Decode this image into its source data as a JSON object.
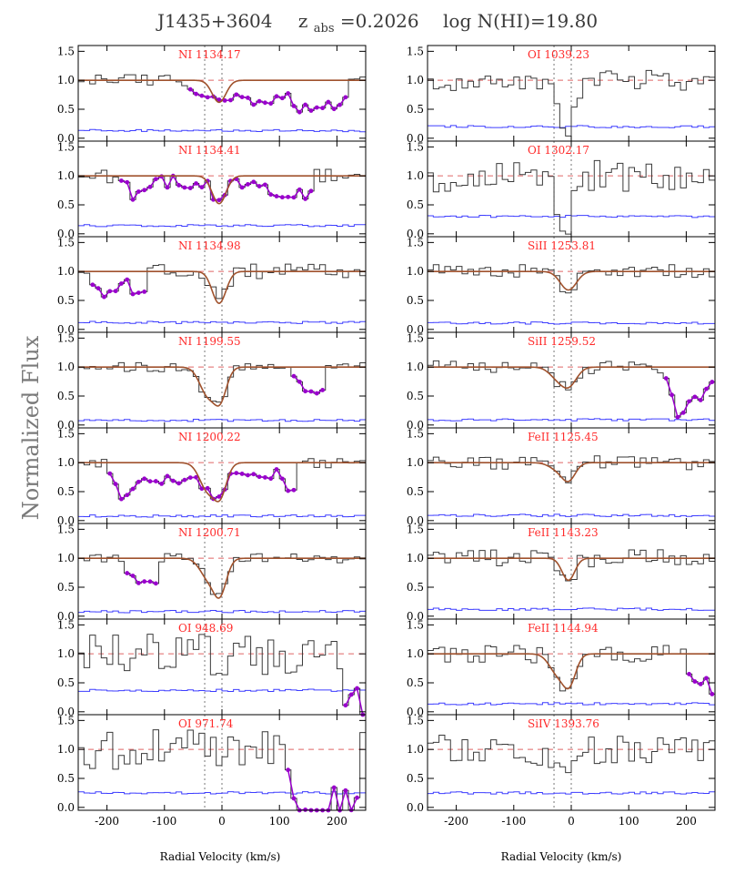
{
  "header": {
    "object": "J1435+3604",
    "z_symbol": "z",
    "z_subscript": "abs",
    "z_value": "=0.2026",
    "column_density": "log N(HI)=19.80"
  },
  "ylabel": "Normalized Flux",
  "xlabel": "Radial Velocity (km/s)",
  "colors": {
    "data": "#3a3a3a",
    "error": "#3d3dff",
    "fit": "#a0522d",
    "continuum": "#e06666",
    "label": "#ff2a2a",
    "blend": "#9900cc",
    "marker": "#777777"
  },
  "chart_data": {
    "type": "line",
    "subtype": "absorption-line velocity stack",
    "xlim": [
      -250,
      250
    ],
    "ylim": [
      -0.05,
      1.6
    ],
    "xticks": [
      -200,
      -100,
      0,
      100,
      200
    ],
    "yticks": [
      0.0,
      0.5,
      1.0,
      1.5
    ],
    "ytick_labels": [
      "0.0",
      "0.5",
      "1.0",
      "1.5"
    ],
    "vlines": [
      -30,
      0
    ],
    "grid": false,
    "legend": "none",
    "panels": [
      {
        "label": "NI 1134.17",
        "col": 0,
        "row": 0,
        "noise": 0.11,
        "error": 0.13,
        "fit": true,
        "comps": [
          {
            "v": -5,
            "d": 0.38,
            "w": 12
          }
        ],
        "blends": [
          [
            -60,
            0.72
          ],
          [
            -40,
            0.8
          ],
          [
            85,
            0.55
          ],
          [
            100,
            0.8
          ],
          [
            130,
            0.55
          ],
          [
            210,
            0.62
          ],
          [
            220,
            0.75
          ]
        ],
        "continuum": true
      },
      {
        "label": "NI 1134.41",
        "col": 0,
        "row": 1,
        "noise": 0.12,
        "error": 0.14,
        "fit": true,
        "comps": [
          {
            "v": -5,
            "d": 0.48,
            "w": 12
          }
        ],
        "blends": [
          [
            -175,
            0.85
          ],
          [
            -140,
            0.6
          ],
          [
            -120,
            0.9
          ],
          [
            70,
            0.85
          ],
          [
            120,
            0.62
          ],
          [
            160,
            0.75
          ]
        ],
        "continuum": true
      },
      {
        "label": "NI 1134.98",
        "col": 0,
        "row": 2,
        "noise": 0.13,
        "error": 0.12,
        "fit": true,
        "comps": [
          {
            "v": -5,
            "d": 0.55,
            "w": 12
          }
        ],
        "blends": [
          [
            -230,
            0.82
          ],
          [
            -200,
            0.6
          ],
          [
            -160,
            0.75
          ],
          [
            -130,
            0.55
          ]
        ],
        "continuum": true
      },
      {
        "label": "NI 1199.55",
        "col": 0,
        "row": 3,
        "noise": 0.08,
        "error": 0.08,
        "fit": true,
        "comps": [
          {
            "v": -25,
            "d": 0.45,
            "w": 14
          },
          {
            "v": -5,
            "d": 0.6,
            "w": 12
          }
        ],
        "blends": [
          [
            120,
            0.85
          ],
          [
            150,
            0.6
          ],
          [
            175,
            0.55
          ]
        ],
        "continuum": true
      },
      {
        "label": "NI 1200.22",
        "col": 0,
        "row": 4,
        "noise": 0.09,
        "error": 0.08,
        "fit": true,
        "comps": [
          {
            "v": -25,
            "d": 0.45,
            "w": 14
          },
          {
            "v": -5,
            "d": 0.6,
            "w": 12
          }
        ],
        "blends": [
          [
            -200,
            0.8
          ],
          [
            -175,
            0.45
          ],
          [
            -140,
            0.7
          ],
          [
            100,
            0.8
          ],
          [
            130,
            0.4
          ]
        ],
        "continuum": true
      },
      {
        "label": "NI 1200.71",
        "col": 0,
        "row": 5,
        "noise": 0.08,
        "error": 0.08,
        "fit": true,
        "comps": [
          {
            "v": -25,
            "d": 0.3,
            "w": 14
          },
          {
            "v": -5,
            "d": 0.65,
            "w": 12
          }
        ],
        "blends": [
          [
            -170,
            0.85
          ],
          [
            -140,
            0.6
          ],
          [
            -110,
            0.55
          ]
        ],
        "continuum": true
      },
      {
        "label": "OI 948.69",
        "col": 0,
        "row": 6,
        "noise": 0.38,
        "error": 0.37,
        "fit": false,
        "comps": [],
        "blends": [
          [
            210,
            0.45
          ],
          [
            230,
            0.35
          ],
          [
            250,
            0.1
          ]
        ],
        "continuum": true
      },
      {
        "label": "OI 971.74",
        "col": 0,
        "row": 7,
        "noise": 0.36,
        "error": 0.25,
        "fit": false,
        "comps": [],
        "blends": [
          [
            110,
            0.7
          ],
          [
            130,
            0.25
          ],
          [
            160,
            0.05
          ],
          [
            240,
            0.05
          ]
        ],
        "continuum": true
      },
      {
        "label": "OI 1039.23",
        "col": 1,
        "row": 0,
        "noise": 0.18,
        "error": 0.2,
        "fit": false,
        "comps": [
          {
            "v": -10,
            "d": 0.9,
            "w": 14
          }
        ],
        "blends": [],
        "continuum": true
      },
      {
        "label": "OI 1302.17",
        "col": 1,
        "row": 1,
        "noise": 0.3,
        "error": 0.3,
        "fit": false,
        "comps": [
          {
            "v": -10,
            "d": 0.9,
            "w": 14
          }
        ],
        "blends": [],
        "continuum": true
      },
      {
        "label": "SiII 1253.81",
        "col": 1,
        "row": 2,
        "noise": 0.12,
        "error": 0.11,
        "fit": true,
        "comps": [
          {
            "v": -5,
            "d": 0.32,
            "w": 14
          }
        ],
        "blends": [],
        "continuum": true
      },
      {
        "label": "SiII 1259.52",
        "col": 1,
        "row": 3,
        "noise": 0.12,
        "error": 0.09,
        "fit": true,
        "comps": [
          {
            "v": -25,
            "d": 0.15,
            "w": 14
          },
          {
            "v": -5,
            "d": 0.32,
            "w": 14
          }
        ],
        "blends": [
          [
            160,
            0.85
          ],
          [
            185,
            0.15
          ],
          [
            220,
            0.45
          ],
          [
            250,
            0.7
          ]
        ],
        "continuum": true
      },
      {
        "label": "FeII 1125.45",
        "col": 1,
        "row": 4,
        "noise": 0.12,
        "error": 0.09,
        "fit": true,
        "comps": [
          {
            "v": -25,
            "d": 0.1,
            "w": 14
          },
          {
            "v": -5,
            "d": 0.3,
            "w": 12
          }
        ],
        "blends": [],
        "continuum": true
      },
      {
        "label": "FeII 1143.23",
        "col": 1,
        "row": 5,
        "noise": 0.15,
        "error": 0.12,
        "fit": true,
        "comps": [
          {
            "v": -5,
            "d": 0.38,
            "w": 11
          }
        ],
        "blends": [],
        "continuum": true
      },
      {
        "label": "FeII 1144.94",
        "col": 1,
        "row": 6,
        "noise": 0.15,
        "error": 0.14,
        "fit": true,
        "comps": [
          {
            "v": -25,
            "d": 0.3,
            "w": 14
          },
          {
            "v": -5,
            "d": 0.55,
            "w": 12
          }
        ],
        "blends": [
          [
            200,
            0.75
          ],
          [
            230,
            0.55
          ],
          [
            250,
            0.4
          ]
        ],
        "continuum": true
      },
      {
        "label": "SiIV 1393.76",
        "col": 1,
        "row": 7,
        "noise": 0.25,
        "error": 0.25,
        "fit": false,
        "comps": [
          {
            "v": -15,
            "d": 0.5,
            "w": 20
          }
        ],
        "blends": [],
        "continuum": true
      }
    ]
  }
}
